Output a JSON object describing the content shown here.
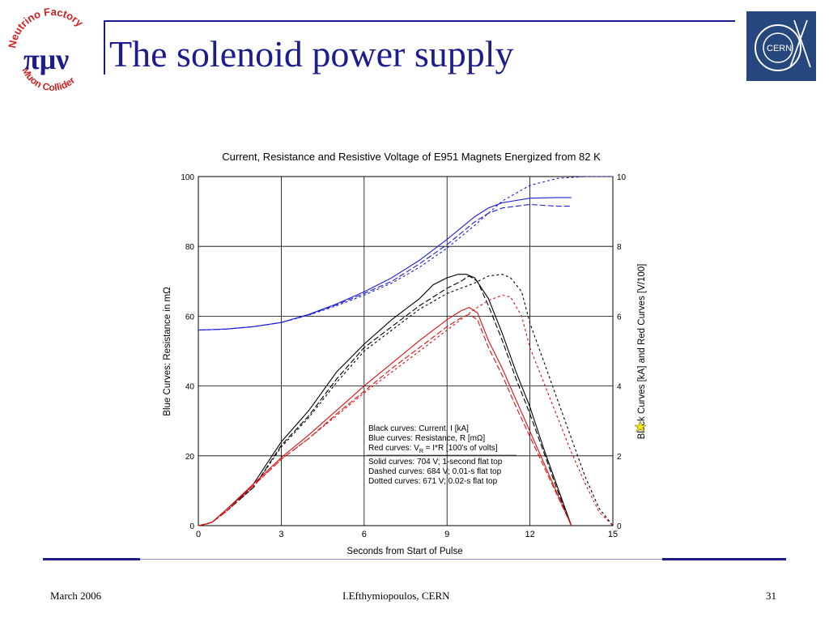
{
  "slide": {
    "title": "The solenoid power supply",
    "footer_date": "March 2006",
    "footer_author": "I.Efthymiopoulos, CERN",
    "page_number": "31",
    "logo_left": {
      "ring_top": "Neutrino Factory",
      "ring_bottom": "Muon Collider",
      "symbols": "πμν"
    },
    "logo_right": {
      "text": "CERN"
    }
  },
  "colors": {
    "title_blue": "#1c1c8c",
    "black_curves": "#000000",
    "blue_curves": "#1f1fd6",
    "red_curves": "#dd1111",
    "cern_logo": "#26477e"
  },
  "chart_data": {
    "type": "line",
    "title": "Current, Resistance and Resistive Voltage of E951 Magnets Energized from 82 K",
    "xlabel": "Seconds from Start of Pulse",
    "ylabel_left": "Blue Curves: Resistance in mΩ",
    "ylabel_right": "Black Curves [kA] and Red Curves [V/100]",
    "xlim": [
      0,
      15
    ],
    "ylim_left": [
      0,
      100
    ],
    "ylim_right": [
      0,
      10
    ],
    "xticks": [
      "0",
      "3",
      "6",
      "9",
      "12",
      "15"
    ],
    "yticks_left": [
      "0",
      "20",
      "40",
      "60",
      "80",
      "100"
    ],
    "yticks_right": [
      "0",
      "2",
      "4",
      "6",
      "8",
      "10"
    ],
    "grid": true,
    "legend_lines": [
      "Black curves:  Current, I  [kA]",
      "Blue curves:  Resistance, R  [mΩ]",
      "Red curves:  V",
      "Solid curves:  704 V; 1-second flat top",
      "Dashed curves:  684 V; 0.01-s flat top",
      "Dotted curves:  671 V; 0.02-s flat top"
    ],
    "legend_red_subscript": "R",
    "legend_red_rest": " = I*R   [100's of volts]",
    "series": [
      {
        "group": "black",
        "style": "solid",
        "x": [
          0,
          0.3,
          0.5,
          1,
          1.5,
          2,
          3,
          4,
          5,
          6,
          7,
          8,
          8.5,
          9,
          9.4,
          9.7,
          10,
          10.5,
          11,
          11.5,
          12,
          12.5,
          13,
          13.5
        ],
        "y": [
          0,
          0.5,
          1,
          4.5,
          8,
          12,
          24,
          33,
          44,
          52,
          59,
          65,
          69,
          71,
          72,
          72,
          71,
          65,
          55,
          44,
          34,
          22,
          11,
          0
        ]
      },
      {
        "group": "black",
        "style": "dashed",
        "x": [
          0,
          0.3,
          0.5,
          1,
          1.5,
          2,
          3,
          4,
          5,
          6,
          7,
          8,
          9,
          9.5,
          9.8,
          10.1,
          10.5,
          11,
          11.5,
          12,
          12.5,
          13,
          13.5
        ],
        "y": [
          0,
          0.5,
          1,
          4,
          7.5,
          11,
          23,
          31.5,
          42,
          51,
          57,
          63,
          68,
          70,
          71.5,
          70,
          63,
          53,
          42,
          32,
          21,
          10,
          0
        ]
      },
      {
        "group": "black",
        "style": "dotted",
        "x": [
          0,
          0.3,
          0.5,
          1,
          1.5,
          2,
          3,
          4,
          5,
          6,
          7,
          8,
          9,
          10,
          10.5,
          11,
          11.3,
          11.7,
          12,
          12.5,
          13,
          13.5,
          14,
          14.5,
          15
        ],
        "y": [
          0,
          0.5,
          1,
          4,
          7.5,
          11,
          22.5,
          31,
          41,
          50,
          56,
          62,
          66.5,
          69.5,
          71.5,
          72,
          71,
          67,
          58,
          47,
          36,
          25,
          14,
          5,
          0
        ]
      },
      {
        "group": "blue",
        "style": "solid",
        "x": [
          0,
          1,
          2,
          3,
          4,
          5,
          6,
          7,
          8,
          9,
          10,
          10.5,
          11,
          12,
          13,
          13.5
        ],
        "y": [
          56,
          56.3,
          57,
          58.2,
          60.5,
          63.5,
          67,
          71,
          76,
          82,
          88.5,
          91,
          92.5,
          93.8,
          94,
          94
        ]
      },
      {
        "group": "blue",
        "style": "dashed",
        "x": [
          0,
          1,
          2,
          3,
          4,
          5,
          6,
          7,
          8,
          9,
          10,
          10.5,
          11,
          12,
          13,
          13.5
        ],
        "y": [
          56,
          56.3,
          57,
          58.2,
          60.4,
          63.3,
          66.5,
          70,
          75,
          80.5,
          87,
          89.5,
          91,
          92,
          91.5,
          91.5
        ]
      },
      {
        "group": "blue",
        "style": "dotted",
        "x": [
          0,
          1,
          2,
          3,
          4,
          5,
          6,
          7,
          8,
          9,
          10,
          11,
          12,
          13,
          14,
          15
        ],
        "y": [
          56,
          56.3,
          57,
          58.2,
          60.3,
          63,
          66,
          69.5,
          74,
          79.5,
          86,
          93,
          97.5,
          99.5,
          100,
          100
        ]
      },
      {
        "group": "red",
        "style": "solid",
        "x": [
          0,
          0.3,
          0.5,
          1,
          2,
          3,
          4,
          5,
          6,
          7,
          8,
          9,
          9.5,
          9.8,
          10.1,
          10.5,
          11,
          11.5,
          12,
          12.5,
          13,
          13.5
        ],
        "y": [
          0,
          0.5,
          1,
          4.5,
          12,
          19.5,
          26,
          33,
          40,
          46.5,
          53,
          59,
          61.5,
          62.5,
          61,
          53,
          45,
          36,
          27,
          18,
          9,
          0
        ]
      },
      {
        "group": "red",
        "style": "dashed",
        "x": [
          0,
          0.3,
          0.5,
          1,
          2,
          3,
          4,
          5,
          6,
          7,
          8,
          9,
          9.5,
          9.8,
          10.1,
          10.5,
          11,
          11.5,
          12,
          12.5,
          13,
          13.5
        ],
        "y": [
          0,
          0.5,
          1,
          4,
          11.5,
          19,
          25,
          32,
          38.5,
          45,
          51,
          57,
          59.5,
          60.5,
          59,
          51,
          43,
          34,
          25.5,
          17,
          8.5,
          0
        ]
      },
      {
        "group": "red",
        "style": "dotted",
        "x": [
          0,
          0.3,
          0.5,
          1,
          2,
          3,
          4,
          5,
          6,
          7,
          8,
          9,
          10,
          10.5,
          11,
          11.3,
          11.7,
          12,
          12.5,
          13,
          13.5,
          14,
          14.5,
          15
        ],
        "y": [
          0,
          0.5,
          1,
          4,
          11.5,
          19,
          25,
          31.5,
          38,
          44,
          50,
          56,
          62,
          64.5,
          66,
          65.5,
          60,
          51,
          41,
          31,
          21,
          12,
          4,
          0
        ]
      }
    ]
  }
}
